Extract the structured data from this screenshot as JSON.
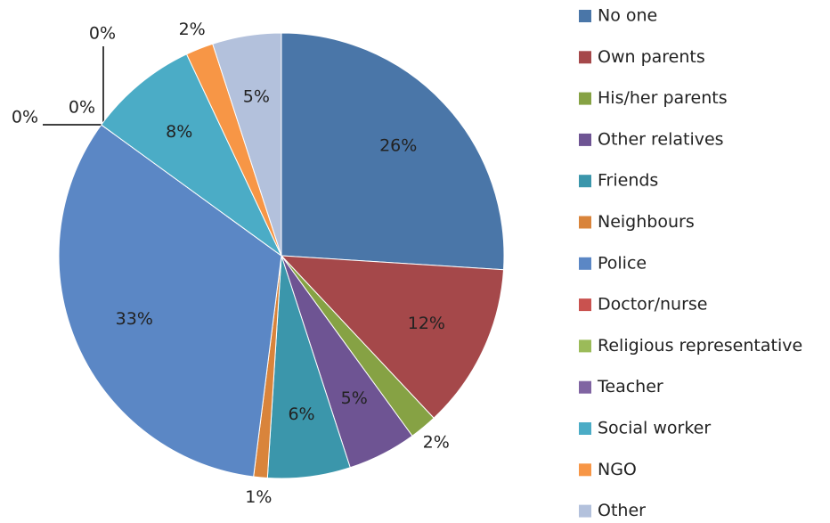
{
  "chart_data": {
    "type": "pie",
    "categories": [
      "No one",
      "Own parents",
      "His/her parents",
      "Other relatives",
      "Friends",
      "Neighbours",
      "Police",
      "Doctor/nurse",
      "Religious representative",
      "Teacher",
      "Social worker",
      "NGO",
      "Other"
    ],
    "values": [
      26,
      12,
      2,
      5,
      6,
      1,
      33,
      0,
      0,
      0,
      8,
      2,
      5
    ],
    "value_labels": [
      "26%",
      "12%",
      "2%",
      "5%",
      "6%",
      "1%",
      "33%",
      "0%",
      "0%",
      "0%",
      "8%",
      "2%",
      "5%"
    ],
    "colors": [
      "#4a76a8",
      "#a5484a",
      "#86a244",
      "#6e5493",
      "#3b96ab",
      "#d9843b",
      "#5b87c5",
      "#c9524f",
      "#9bbb59",
      "#8064a2",
      "#4bacc6",
      "#f79646",
      "#b3c1dc"
    ],
    "legend": "right"
  }
}
